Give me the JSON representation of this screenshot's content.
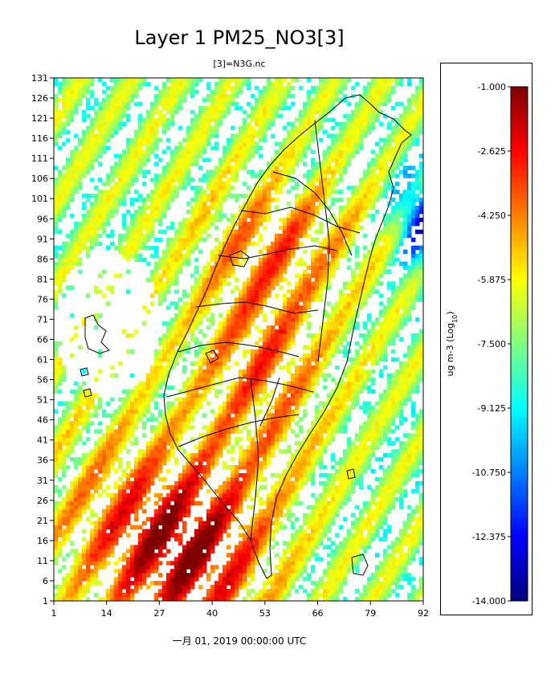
{
  "chart_data": {
    "type": "heatmap",
    "title": "Layer 1 PM25_NO3[3]",
    "subtitle": "[3]=N3G.nc",
    "xlabel": "一月 01, 2019 00:00:00 UTC",
    "x_ticks": [
      "1",
      "14",
      "27",
      "40",
      "53",
      "66",
      "79",
      "92"
    ],
    "y_ticks": [
      "1",
      "6",
      "11",
      "16",
      "21",
      "26",
      "31",
      "36",
      "41",
      "46",
      "51",
      "56",
      "61",
      "66",
      "71",
      "76",
      "81",
      "86",
      "91",
      "96",
      "101",
      "106",
      "111",
      "116",
      "121",
      "126",
      "131"
    ],
    "xlim": [
      1,
      92
    ],
    "ylim": [
      1,
      131
    ],
    "colorbar": {
      "label": "ug m-3 (Log",
      "label_sub": "10",
      "label_end": ")",
      "min": -14.0,
      "max": -1.0,
      "ticks": [
        "-1.000",
        "-2.625",
        "-4.250",
        "-5.875",
        "-7.500",
        "-9.125",
        "-10.750",
        "-12.375",
        "-14.000"
      ]
    },
    "colormap": [
      "#00007f",
      "#0000ff",
      "#007fff",
      "#00ffff",
      "#7fff7f",
      "#ffff00",
      "#ff7f00",
      "#ff0000",
      "#7f0000"
    ]
  }
}
